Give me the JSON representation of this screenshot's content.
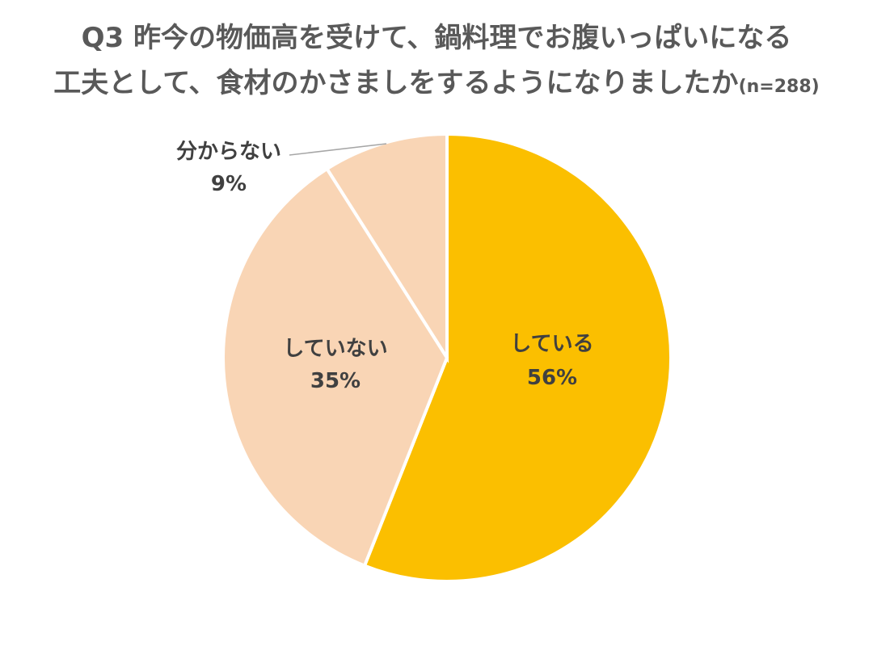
{
  "chart_data": {
    "type": "pie",
    "title_line1": "Q3 昨今の物価高を受けて、鍋料理でお腹いっぱいになる",
    "title_line2": "工夫として、食材のかさましをするようになりましたか",
    "title_n": "(n=288)",
    "start": "top",
    "direction": "clockwise",
    "slices": [
      {
        "label": "している",
        "value": 56,
        "value_label": "56%",
        "color": "#FBBF00"
      },
      {
        "label": "していない",
        "value": 35,
        "value_label": "35%",
        "color": "#F9D5B5"
      },
      {
        "label": "分からない",
        "value": 9,
        "value_label": "9%",
        "color": "#F9D5B5"
      }
    ]
  }
}
